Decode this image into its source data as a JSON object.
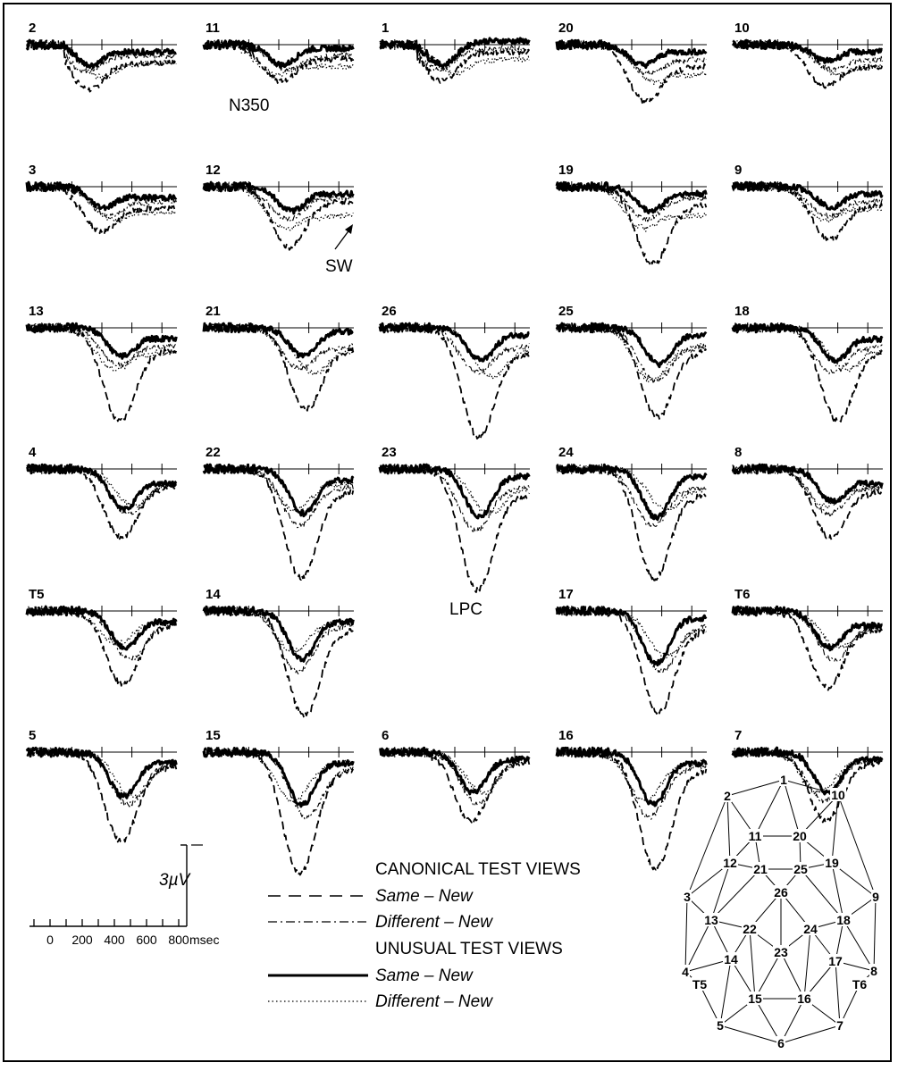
{
  "chart_data": {
    "type": "line",
    "x_unit": "msec",
    "x_ticks": [
      0,
      200,
      400,
      600,
      800
    ],
    "x_range": [
      -100,
      900
    ],
    "amplitude_scale": "3 µV",
    "amp_range": [
      -15,
      4
    ],
    "series": [
      {
        "name": "Canonical Same - New",
        "line": "dashed"
      },
      {
        "name": "Canonical Different - New",
        "line": "dash-dot"
      },
      {
        "name": "Unusual Same - New",
        "line": "solid-thick"
      },
      {
        "name": "Unusual Different - New",
        "line": "dotted"
      }
    ],
    "channels": [
      {
        "label": "2",
        "peaks": [
          -5.5,
          -3.2,
          -2.5,
          -4.0
        ],
        "peak_ms": 320,
        "late": [
          -2.5,
          -1.5,
          -1.0,
          -2.5
        ]
      },
      {
        "label": "11",
        "peaks": [
          -4.5,
          -3.0,
          -2.5,
          -3.5
        ],
        "peak_ms": 420,
        "late": [
          -2.0,
          -1.5,
          -0.5,
          -3.0
        ]
      },
      {
        "label": "1",
        "peaks": [
          -4.5,
          -3.0,
          -2.5,
          -3.5
        ],
        "peak_ms": 320,
        "late": [
          -1.0,
          -0.5,
          0.5,
          -2.0
        ]
      },
      {
        "label": "20",
        "peaks": [
          -7.0,
          -3.5,
          -2.5,
          -4.5
        ],
        "peak_ms": 470,
        "late": [
          -3.0,
          -2.0,
          -1.0,
          -4.0
        ]
      },
      {
        "label": "10",
        "peaks": [
          -5.0,
          -3.0,
          -2.0,
          -3.5
        ],
        "peak_ms": 520,
        "late": [
          -3.0,
          -2.0,
          -1.0,
          -3.0
        ]
      },
      {
        "label": "3",
        "peaks": [
          -5.5,
          -3.5,
          -2.5,
          -4.0
        ],
        "peak_ms": 400,
        "late": [
          -3.0,
          -2.0,
          -1.5,
          -3.5
        ]
      },
      {
        "label": "12",
        "peaks": [
          -7.5,
          -4.0,
          -3.0,
          -5.0
        ],
        "peak_ms": 480,
        "late": [
          -2.0,
          -1.5,
          -1.0,
          -4.0
        ]
      },
      {
        "label": "19",
        "peaks": [
          -9.5,
          -4.0,
          -3.0,
          -5.0
        ],
        "peak_ms": 520,
        "late": [
          -2.5,
          -1.5,
          -1.0,
          -4.0
        ]
      },
      {
        "label": "9",
        "peaks": [
          -6.5,
          -3.5,
          -2.5,
          -4.0
        ],
        "peak_ms": 550,
        "late": [
          -2.5,
          -2.0,
          -1.0,
          -3.0
        ]
      },
      {
        "label": "13",
        "peaks": [
          -11.5,
          -4.5,
          -3.5,
          -5.0
        ],
        "peak_ms": 530,
        "late": [
          -3.0,
          -2.5,
          -1.5,
          -3.5
        ]
      },
      {
        "label": "21",
        "peaks": [
          -10.0,
          -5.0,
          -3.5,
          -5.5
        ],
        "peak_ms": 560,
        "late": [
          -3.0,
          -2.5,
          -0.5,
          -3.0
        ]
      },
      {
        "label": "26",
        "peaks": [
          -13.5,
          -5.5,
          -4.0,
          -6.0
        ],
        "peak_ms": 570,
        "late": [
          -3.5,
          -2.5,
          -1.0,
          -3.0
        ]
      },
      {
        "label": "25",
        "peaks": [
          -11.0,
          -6.5,
          -4.5,
          -6.5
        ],
        "peak_ms": 580,
        "late": [
          -3.0,
          -2.5,
          -1.0,
          -2.5
        ]
      },
      {
        "label": "18",
        "peaks": [
          -11.5,
          -5.5,
          -4.0,
          -5.0
        ],
        "peak_ms": 580,
        "late": [
          -3.0,
          -2.5,
          -1.5,
          -3.0
        ]
      },
      {
        "label": "4",
        "peaks": [
          -8.5,
          -5.5,
          -5.0,
          -4.5
        ],
        "peak_ms": 540,
        "late": [
          -2.5,
          -2.0,
          -2.0,
          -2.0
        ]
      },
      {
        "label": "22",
        "peaks": [
          -13.5,
          -7.0,
          -5.5,
          -5.0
        ],
        "peak_ms": 560,
        "late": [
          -3.0,
          -2.5,
          -1.5,
          -2.0
        ]
      },
      {
        "label": "23",
        "peaks": [
          -15.0,
          -7.5,
          -6.0,
          -5.5
        ],
        "peak_ms": 560,
        "late": [
          -3.5,
          -2.5,
          -1.0,
          -2.5
        ]
      },
      {
        "label": "24",
        "peaks": [
          -13.5,
          -7.0,
          -6.0,
          -5.0
        ],
        "peak_ms": 560,
        "late": [
          -3.5,
          -2.5,
          -1.0,
          -2.5
        ]
      },
      {
        "label": "8",
        "peaks": [
          -8.5,
          -5.5,
          -4.0,
          -4.5
        ],
        "peak_ms": 560,
        "late": [
          -3.0,
          -2.5,
          -2.0,
          -2.5
        ]
      },
      {
        "label": "T5",
        "peaks": [
          -9.0,
          -6.0,
          -4.5,
          -4.0
        ],
        "peak_ms": 550,
        "late": [
          -2.0,
          -1.5,
          -1.5,
          -1.5
        ]
      },
      {
        "label": "14",
        "peaks": [
          -13.0,
          -7.5,
          -6.0,
          -5.0
        ],
        "peak_ms": 550,
        "late": [
          -2.5,
          -2.0,
          -1.5,
          -1.5
        ]
      },
      {
        "label": "17",
        "peaks": [
          -12.5,
          -7.5,
          -6.5,
          -5.5
        ],
        "peak_ms": 560,
        "late": [
          -2.5,
          -2.0,
          -1.0,
          -2.0
        ]
      },
      {
        "label": "T6",
        "peaks": [
          -9.5,
          -6.0,
          -4.5,
          -4.5
        ],
        "peak_ms": 540,
        "late": [
          -2.5,
          -2.0,
          -2.0,
          -2.0
        ]
      },
      {
        "label": "5",
        "peaks": [
          -11.0,
          -6.5,
          -5.5,
          -5.5
        ],
        "peak_ms": 540,
        "late": [
          -2.0,
          -1.5,
          -1.5,
          -1.5
        ]
      },
      {
        "label": "15",
        "peaks": [
          -15.0,
          -8.0,
          -6.5,
          -6.0
        ],
        "peak_ms": 550,
        "late": [
          -2.5,
          -2.0,
          -1.5,
          -1.5
        ]
      },
      {
        "label": "6",
        "peaks": [
          -8.5,
          -6.5,
          -5.0,
          -5.0
        ],
        "peak_ms": 520,
        "late": [
          -1.5,
          -1.0,
          -1.0,
          -1.0
        ]
      },
      {
        "label": "16",
        "peaks": [
          -14.5,
          -8.0,
          -6.5,
          -6.0
        ],
        "peak_ms": 540,
        "late": [
          -2.5,
          -2.0,
          -1.5,
          -1.5
        ]
      },
      {
        "label": "7",
        "peaks": [
          -8.5,
          -6.0,
          -5.0,
          -5.0
        ],
        "peak_ms": 530,
        "late": [
          -1.5,
          -1.0,
          -1.0,
          -1.0
        ]
      }
    ]
  },
  "annotations": {
    "n350": "N350",
    "sw": "SW",
    "lpc": "LPC"
  },
  "scale_bar": {
    "voltage": "3µV",
    "tick_labels": [
      "0",
      "200",
      "400",
      "600",
      "800"
    ],
    "unit": "msec"
  },
  "legend": {
    "canonical_heading": "CANONICAL TEST VIEWS",
    "unusual_heading": "UNUSUAL TEST VIEWS",
    "canonical_same": "Same – New",
    "canonical_different": "Different – New",
    "unusual_same": "Same – New",
    "unusual_different": "Different – New"
  },
  "electrode_map": {
    "labels": [
      "1",
      "2",
      "3",
      "4",
      "5",
      "6",
      "7",
      "8",
      "9",
      "10",
      "11",
      "12",
      "13",
      "14",
      "15",
      "16",
      "17",
      "18",
      "19",
      "20",
      "21",
      "22",
      "23",
      "24",
      "25",
      "26",
      "T5",
      "T6"
    ]
  }
}
